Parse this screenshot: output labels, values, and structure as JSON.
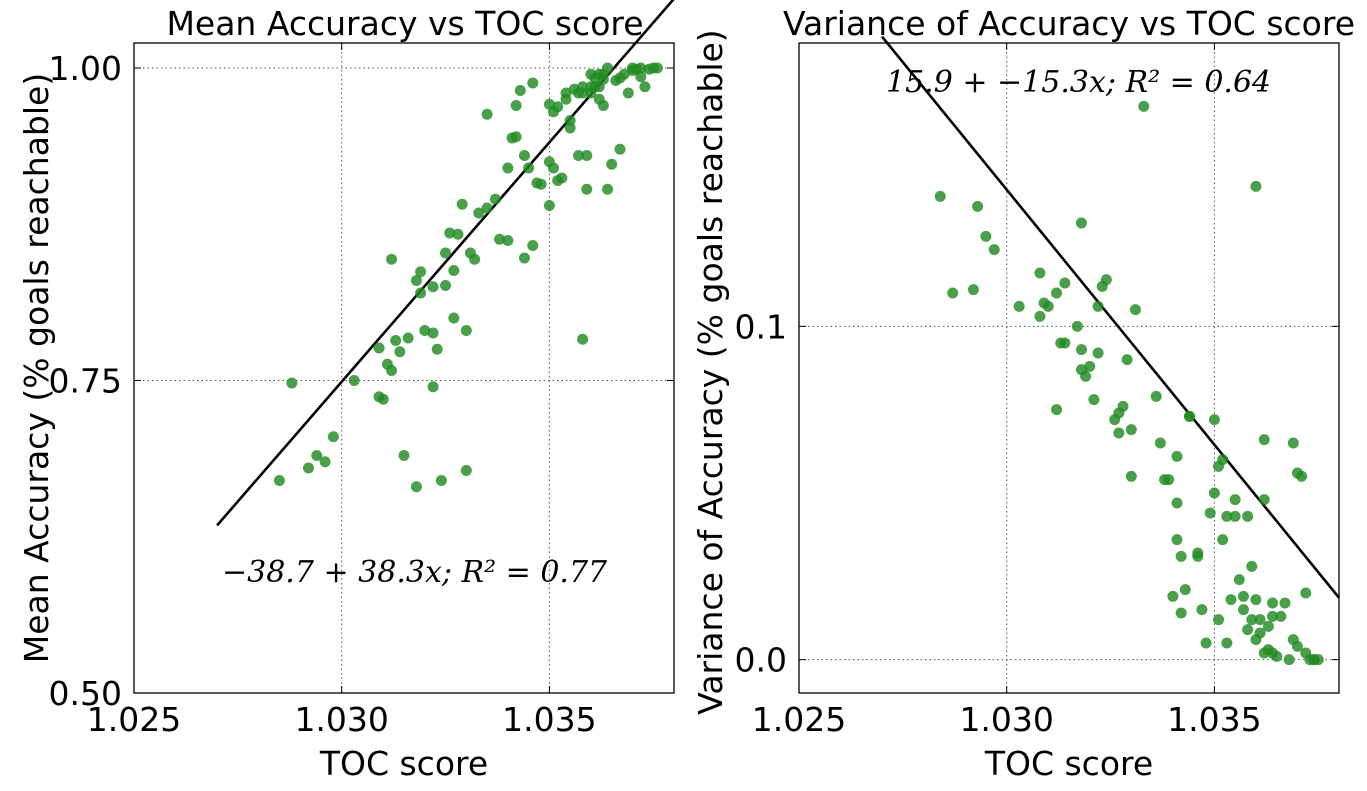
{
  "colors": {
    "points": "#228B22",
    "line": "#000000",
    "background": "#ffffff"
  },
  "chart_data": [
    {
      "type": "scatter",
      "title": "Mean Accuracy vs TOC score",
      "xlabel": "TOC score",
      "ylabel": "Mean Accuracy (% goals reachable)",
      "xlim": [
        1.025,
        1.038
      ],
      "ylim": [
        0.5,
        1.02
      ],
      "xticks": [
        1.025,
        1.03,
        1.035
      ],
      "xtick_labels": [
        "1.025",
        "1.030",
        "1.035"
      ],
      "yticks": [
        0.5,
        0.75,
        1.0
      ],
      "ytick_labels": [
        "0.50",
        "0.75",
        "1.00"
      ],
      "grid": true,
      "fit": {
        "intercept": -38.7,
        "slope": 38.3,
        "x_range": [
          1.027,
          1.038
        ]
      },
      "annotation": "−38.7 + 38.3x; R² = 0.77",
      "x": [
        1.0285,
        1.0292,
        1.0294,
        1.0296,
        1.0298,
        1.0288,
        1.0303,
        1.0309,
        1.0309,
        1.031,
        1.0311,
        1.0312,
        1.0312,
        1.0313,
        1.0314,
        1.0315,
        1.0316,
        1.0318,
        1.0318,
        1.0319,
        1.0319,
        1.032,
        1.0322,
        1.0322,
        1.0322,
        1.0323,
        1.0324,
        1.0325,
        1.0325,
        1.0326,
        1.0327,
        1.0327,
        1.0328,
        1.0329,
        1.033,
        1.033,
        1.0331,
        1.0332,
        1.0333,
        1.0335,
        1.0335,
        1.0337,
        1.0338,
        1.034,
        1.034,
        1.0341,
        1.0342,
        1.0342,
        1.0343,
        1.0344,
        1.0344,
        1.0345,
        1.0346,
        1.0346,
        1.0347,
        1.0348,
        1.035,
        1.035,
        1.035,
        1.0351,
        1.0351,
        1.0352,
        1.0352,
        1.0353,
        1.0354,
        1.0354,
        1.0355,
        1.0355,
        1.0356,
        1.0357,
        1.0357,
        1.0358,
        1.0358,
        1.0358,
        1.0359,
        1.0359,
        1.036,
        1.036,
        1.036,
        1.0361,
        1.0361,
        1.0362,
        1.0362,
        1.0362,
        1.0363,
        1.0363,
        1.0363,
        1.0364,
        1.0364,
        1.0365,
        1.0366,
        1.0367,
        1.0367,
        1.0368,
        1.0369,
        1.037,
        1.037,
        1.0371,
        1.0372,
        1.0372,
        1.0373,
        1.0374,
        1.0375,
        1.0376
      ],
      "y": [
        0.67,
        0.68,
        0.69,
        0.685,
        0.705,
        0.748,
        0.75,
        0.776,
        0.737,
        0.735,
        0.763,
        0.758,
        0.847,
        0.782,
        0.773,
        0.69,
        0.784,
        0.83,
        0.665,
        0.837,
        0.82,
        0.79,
        0.745,
        0.825,
        0.788,
        0.775,
        0.67,
        0.852,
        0.826,
        0.868,
        0.838,
        0.8,
        0.867,
        0.891,
        0.79,
        0.678,
        0.852,
        0.847,
        0.884,
        0.888,
        0.963,
        0.895,
        0.863,
        0.92,
        0.862,
        0.944,
        0.945,
        0.97,
        0.982,
        0.848,
        0.93,
        0.92,
        0.988,
        0.858,
        0.908,
        0.907,
        0.971,
        0.89,
        0.925,
        0.965,
        0.92,
        0.91,
        0.969,
        0.912,
        0.98,
        0.975,
        0.958,
        0.952,
        0.983,
        0.93,
        0.98,
        0.783,
        0.98,
        0.985,
        0.93,
        0.903,
        0.995,
        0.985,
        0.98,
        0.992,
        0.985,
        0.995,
        0.985,
        0.975,
        0.991,
        0.97,
        0.995,
        1.0,
        0.903,
        0.923,
        0.99,
        0.992,
        0.935,
        0.995,
        0.98,
        0.998,
        1.0,
        0.999,
        0.993,
        1.0,
        0.985,
        0.999,
        1.0,
        1.0
      ]
    },
    {
      "type": "scatter",
      "title": "Variance of Accuracy vs TOC score",
      "xlabel": "TOC score",
      "ylabel": "Variance of Accuracy (% goals reachable)",
      "xlim": [
        1.025,
        1.038
      ],
      "ylim": [
        -0.01,
        0.185
      ],
      "xticks": [
        1.025,
        1.03,
        1.035
      ],
      "xtick_labels": [
        "1.025",
        "1.030",
        "1.035"
      ],
      "yticks": [
        0.0,
        0.1
      ],
      "ytick_labels": [
        "0.0",
        "0.1"
      ],
      "grid": true,
      "fit": {
        "intercept": 15.9,
        "slope": -15.3,
        "x_range": [
          1.027,
          1.038
        ]
      },
      "annotation": "15.9 + −15.3x; R² = 0.64",
      "x": [
        1.0284,
        1.0287,
        1.0292,
        1.0293,
        1.0295,
        1.0297,
        1.0303,
        1.0308,
        1.0308,
        1.0309,
        1.031,
        1.0312,
        1.0312,
        1.0313,
        1.0314,
        1.0314,
        1.0317,
        1.0318,
        1.0318,
        1.0318,
        1.0319,
        1.032,
        1.0321,
        1.0322,
        1.0322,
        1.0323,
        1.0324,
        1.0326,
        1.0327,
        1.0327,
        1.0328,
        1.0329,
        1.033,
        1.033,
        1.0331,
        1.0333,
        1.0336,
        1.0337,
        1.0338,
        1.0339,
        1.034,
        1.0341,
        1.0341,
        1.0341,
        1.0342,
        1.0342,
        1.0343,
        1.0344,
        1.0344,
        1.0346,
        1.0346,
        1.0347,
        1.0348,
        1.0349,
        1.035,
        1.035,
        1.0351,
        1.0351,
        1.0352,
        1.0352,
        1.0353,
        1.0353,
        1.0354,
        1.0355,
        1.0355,
        1.0356,
        1.0357,
        1.0357,
        1.0358,
        1.0358,
        1.0359,
        1.0359,
        1.036,
        1.036,
        1.036,
        1.0361,
        1.0361,
        1.0362,
        1.0362,
        1.0362,
        1.0363,
        1.0363,
        1.0364,
        1.0364,
        1.0364,
        1.0365,
        1.0366,
        1.0367,
        1.0368,
        1.0369,
        1.0369,
        1.037,
        1.037,
        1.0371,
        1.0372,
        1.0372,
        1.0373,
        1.0374,
        1.0374,
        1.0375
      ],
      "y": [
        0.139,
        0.11,
        0.111,
        0.136,
        0.127,
        0.123,
        0.106,
        0.116,
        0.103,
        0.107,
        0.106,
        0.11,
        0.075,
        0.095,
        0.113,
        0.095,
        0.1,
        0.087,
        0.131,
        0.093,
        0.085,
        0.088,
        0.078,
        0.106,
        0.092,
        0.112,
        0.114,
        0.072,
        0.068,
        0.074,
        0.076,
        0.09,
        0.055,
        0.069,
        0.105,
        0.166,
        0.079,
        0.065,
        0.054,
        0.054,
        0.019,
        0.047,
        0.036,
        0.061,
        0.031,
        0.014,
        0.021,
        0.073,
        0.073,
        0.031,
        0.032,
        0.015,
        0.005,
        0.044,
        0.05,
        0.072,
        0.012,
        0.058,
        0.06,
        0.036,
        0.005,
        0.043,
        0.018,
        0.043,
        0.048,
        0.024,
        0.015,
        0.019,
        0.009,
        0.043,
        0.028,
        0.012,
        0.142,
        0.018,
        0.006,
        0.012,
        0.008,
        0.048,
        0.066,
        0.002,
        0.003,
        0.01,
        0.002,
        0.013,
        0.017,
        0.001,
        0.013,
        0.017,
        0.0,
        0.006,
        0.065,
        0.056,
        0.004,
        0.055,
        0.002,
        0.02,
        0.0,
        0.0,
        0.0,
        0.0
      ]
    }
  ]
}
